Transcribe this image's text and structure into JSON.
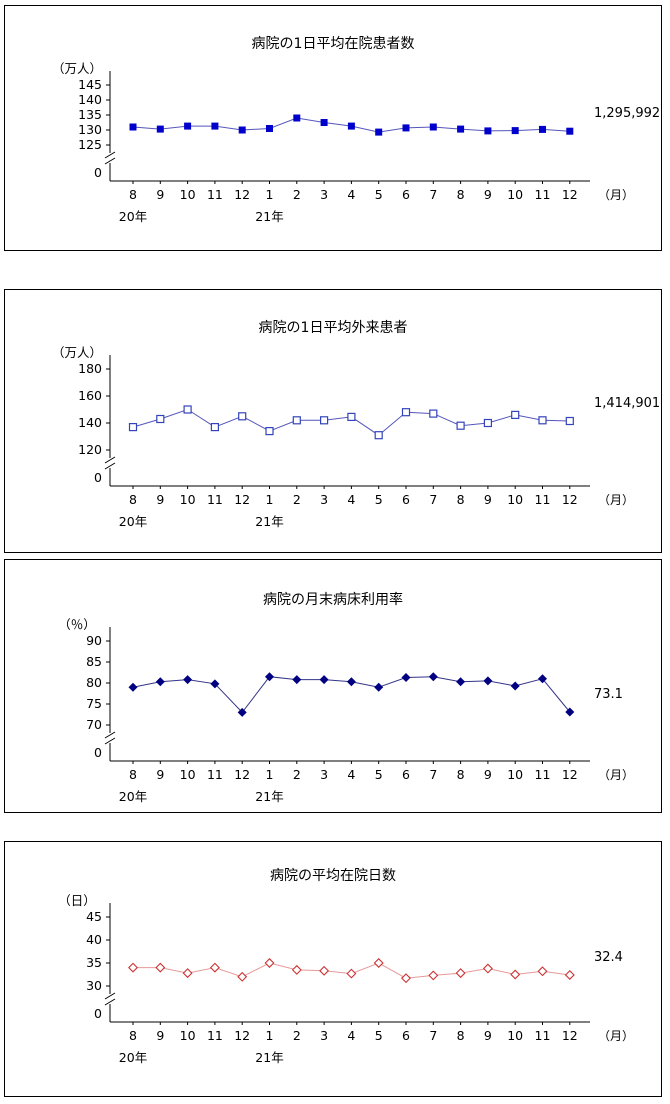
{
  "x_axis": {
    "months": [
      "8",
      "9",
      "10",
      "11",
      "12",
      "1",
      "2",
      "3",
      "4",
      "5",
      "6",
      "7",
      "8",
      "9",
      "10",
      "11",
      "12"
    ],
    "unit_label": "（月）",
    "year_labels": [
      {
        "text": "20年",
        "month_index": 0
      },
      {
        "text": "21年",
        "month_index": 5
      }
    ]
  },
  "chart_data": [
    {
      "type": "line",
      "title": "病院の1日平均在院患者数",
      "unit": "（万人）",
      "annotation": "1,295,992",
      "marker": "square-filled",
      "line_color": "#5555bb",
      "marker_color": "#0000cc",
      "yticks": [
        145,
        140,
        135,
        130,
        125
      ],
      "zero_label": "0",
      "axis_break": true,
      "values": [
        131,
        130.3,
        131.3,
        131.3,
        130,
        130.5,
        134,
        132.5,
        131.3,
        129.3,
        130.7,
        131,
        130.3,
        129.7,
        129.8,
        130.2,
        129.6
      ]
    },
    {
      "type": "line",
      "title": "病院の1日平均外来患者",
      "unit": "（万人）",
      "annotation": "1,414,901",
      "marker": "square-open",
      "line_color": "#5555bb",
      "marker_color": "#3344bb",
      "yticks": [
        180,
        160,
        140,
        120
      ],
      "zero_label": "0",
      "axis_break": true,
      "values": [
        137,
        143,
        150,
        137,
        145,
        134,
        142,
        142,
        144.5,
        131,
        148,
        147,
        138,
        140,
        146,
        142,
        141.5
      ]
    },
    {
      "type": "line",
      "title": "病院の月末病床利用率",
      "unit": "（％）",
      "annotation": "73.1",
      "marker": "diamond-filled",
      "line_color": "#333388",
      "marker_color": "#000080",
      "yticks": [
        90,
        85,
        80,
        75,
        70
      ],
      "zero_label": "0",
      "axis_break": true,
      "values": [
        79,
        80.3,
        80.8,
        79.8,
        73,
        81.5,
        80.8,
        80.8,
        80.3,
        79,
        81.3,
        81.5,
        80.3,
        80.5,
        79.3,
        81,
        73.1
      ]
    },
    {
      "type": "line",
      "title": "病院の平均在院日数",
      "unit": "（日）",
      "annotation": "32.4",
      "marker": "diamond-open",
      "line_color": "#e69999",
      "marker_color": "#cc3333",
      "yticks": [
        45,
        40,
        35,
        30
      ],
      "zero_label": "0",
      "axis_break": true,
      "values": [
        34,
        34,
        32.8,
        34,
        32,
        35,
        33.5,
        33.3,
        32.7,
        35,
        31.7,
        32.3,
        32.8,
        33.8,
        32.5,
        33.2,
        32.4
      ]
    }
  ]
}
